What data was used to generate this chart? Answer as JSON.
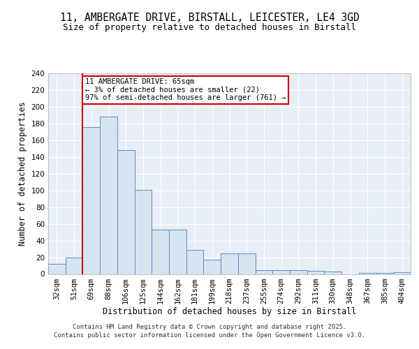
{
  "title_line1": "11, AMBERGATE DRIVE, BIRSTALL, LEICESTER, LE4 3GD",
  "title_line2": "Size of property relative to detached houses in Birstall",
  "xlabel": "Distribution of detached houses by size in Birstall",
  "ylabel": "Number of detached properties",
  "categories": [
    "32sqm",
    "51sqm",
    "69sqm",
    "88sqm",
    "106sqm",
    "125sqm",
    "144sqm",
    "162sqm",
    "181sqm",
    "199sqm",
    "218sqm",
    "237sqm",
    "255sqm",
    "274sqm",
    "292sqm",
    "311sqm",
    "330sqm",
    "348sqm",
    "367sqm",
    "385sqm",
    "404sqm"
  ],
  "values": [
    12,
    20,
    176,
    188,
    148,
    101,
    53,
    53,
    29,
    17,
    25,
    25,
    5,
    5,
    5,
    4,
    3,
    0,
    1,
    1,
    2
  ],
  "bar_color": "#d6e4f0",
  "bar_edge_color": "#5b8ec4",
  "red_line_index": 1.5,
  "annotation_text": "11 AMBERGATE DRIVE: 65sqm\n← 3% of detached houses are smaller (22)\n97% of semi-detached houses are larger (761) →",
  "annotation_box_color": "#ffffff",
  "annotation_box_edge_color": "#cc0000",
  "red_line_color": "#cc0000",
  "ylim": [
    0,
    240
  ],
  "yticks": [
    0,
    20,
    40,
    60,
    80,
    100,
    120,
    140,
    160,
    180,
    200,
    220,
    240
  ],
  "background_color": "#e8eef6",
  "footer_line1": "Contains HM Land Registry data © Crown copyright and database right 2025.",
  "footer_line2": "Contains public sector information licensed under the Open Government Licence v3.0.",
  "title_fontsize": 10.5,
  "subtitle_fontsize": 9,
  "axis_label_fontsize": 8.5,
  "tick_fontsize": 7.5,
  "footer_fontsize": 6.5,
  "annotation_fontsize": 7.5
}
